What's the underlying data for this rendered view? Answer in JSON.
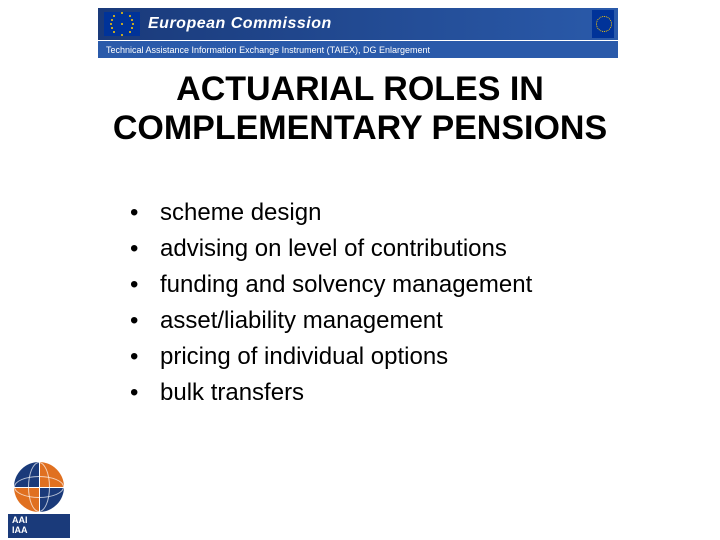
{
  "header": {
    "org": "European Commission",
    "subtitle": "Technical Assistance Information Exchange Instrument (TAIEX), DG Enlargement"
  },
  "title": "ACTUARIAL ROLES IN COMPLEMENTARY PENSIONS",
  "bullets": [
    "scheme design",
    "advising on level of contributions",
    "funding and solvency management",
    "asset/liability management",
    "pricing of individual options",
    "bulk transfers"
  ],
  "logo": {
    "line1": "AAI",
    "line2": "IAA"
  },
  "colors": {
    "banner_dark": "#1a3a7a",
    "banner_light": "#2a5aaa",
    "orange": "#e07020",
    "eu_blue": "#003399",
    "eu_gold": "#ffcc00"
  }
}
